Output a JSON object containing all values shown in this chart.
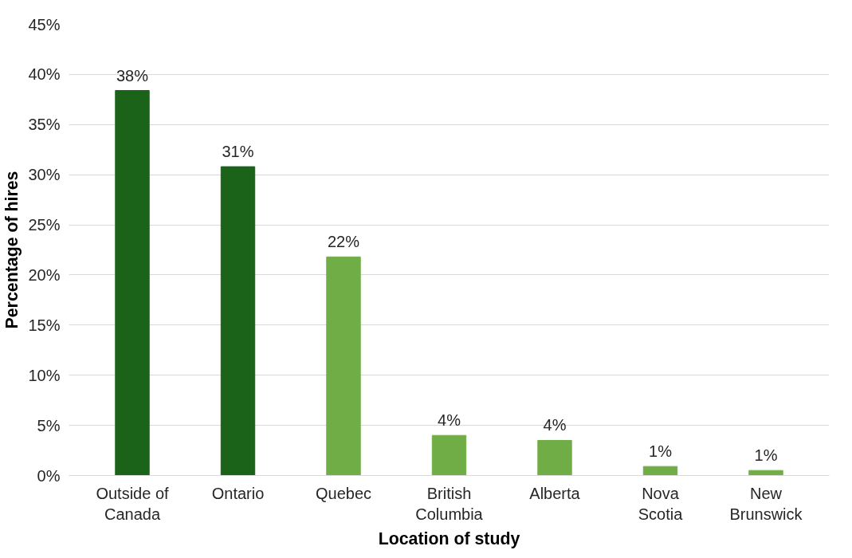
{
  "chart_data": {
    "type": "bar",
    "xlabel": "Location of study",
    "ylabel": "Percentage of hires",
    "categories": [
      "Outside of Canada",
      "Ontario",
      "Quebec",
      "British Columbia",
      "Alberta",
      "Nova Scotia",
      "New Brunswick"
    ],
    "values": [
      38.4,
      30.8,
      21.8,
      4.0,
      3.5,
      0.9,
      0.5
    ],
    "colors": [
      "#1a6318",
      "#1a6318",
      "#70ad47",
      "#70ad47",
      "#70ad47",
      "#70ad47",
      "#70ad47"
    ],
    "value_labels": [
      "38%",
      "31%",
      "22%",
      "4%",
      "4%",
      "1%",
      "1%"
    ],
    "ylim": [
      0,
      45
    ],
    "yticks": [
      {
        "value": 0,
        "label": "0%"
      },
      {
        "value": 5,
        "label": "5%"
      },
      {
        "value": 10,
        "label": "10%"
      },
      {
        "value": 15,
        "label": "15%"
      },
      {
        "value": 20,
        "label": "20%"
      },
      {
        "value": 25,
        "label": "25%"
      },
      {
        "value": 30,
        "label": "30%"
      },
      {
        "value": 35,
        "label": "35%"
      },
      {
        "value": 40,
        "label": "40%"
      },
      {
        "value": 45,
        "label": "45%"
      }
    ],
    "grid": "y"
  }
}
